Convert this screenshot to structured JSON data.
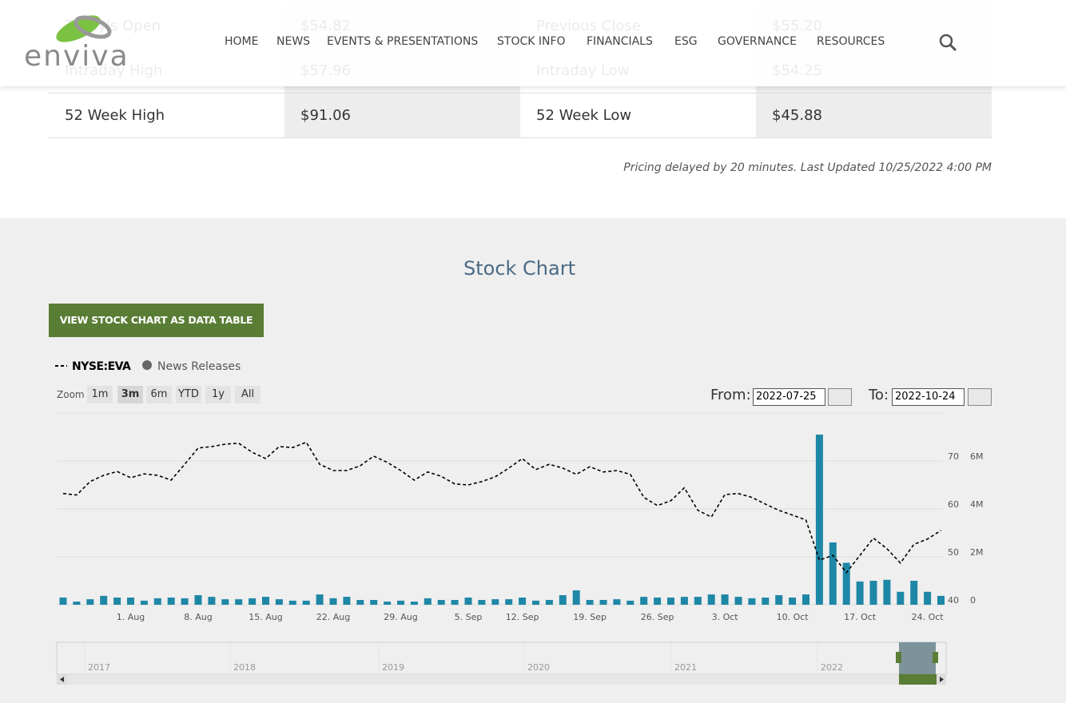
{
  "header": {
    "logo": "enviva",
    "nav": [
      "HOME",
      "NEWS",
      "EVENTS & PRESENTATIONS",
      "STOCK INFO",
      "FINANCIALS",
      "ESG",
      "GOVERNANCE",
      "RESOURCES"
    ]
  },
  "quote_table": {
    "rows": [
      [
        "Today's Open",
        "$54.82",
        "Previous Close",
        "$55.20"
      ],
      [
        "Intraday High",
        "$57.96",
        "Intraday Low",
        "$54.25"
      ],
      [
        "52 Week High",
        "$91.06",
        "52 Week Low",
        "$45.88"
      ]
    ]
  },
  "note": "Pricing delayed by 20 minutes. Last Updated 10/25/2022 4:00 PM",
  "section_title": "Stock Chart",
  "button": "VIEW STOCK CHART AS DATA TABLE",
  "controls": {
    "news_releases": "News Releases",
    "zoom_label": "Zoom",
    "zoom_buttons": [
      "1m",
      "3m",
      "6m",
      "YTD",
      "1y",
      "All"
    ],
    "from_label": "From:",
    "from_value": "2022-07-25",
    "to_label": "To:",
    "to_value": "2022-10-24"
  },
  "navigator": {
    "labels": [
      "2017",
      "2018",
      "2019",
      "2020",
      "2021",
      "2022"
    ]
  },
  "chart_data": {
    "type": "line",
    "categories": [
      null,
      null,
      null,
      null,
      null,
      "1. Aug",
      null,
      null,
      null,
      null,
      "8. Aug",
      null,
      null,
      null,
      null,
      "15. Aug",
      null,
      null,
      null,
      null,
      "22. Aug",
      null,
      null,
      null,
      null,
      "29. Aug",
      null,
      null,
      null,
      null,
      "5. Sep",
      null,
      null,
      null,
      "12. Sep",
      null,
      null,
      null,
      null,
      "19. Sep",
      null,
      null,
      null,
      null,
      "26. Sep",
      null,
      null,
      null,
      null,
      "3. Oct",
      null,
      null,
      null,
      null,
      "10. Oct",
      null,
      null,
      null,
      null,
      "17. Oct",
      null,
      null,
      null,
      null,
      "24. Oct",
      null
    ],
    "series": [
      {
        "name": "NYSE:EVA",
        "color": "#000000",
        "values": [
          63.2,
          62.9,
          65.7,
          67.0,
          67.8,
          66.5,
          67.3,
          67.0,
          66.0,
          69.3,
          72.7,
          73.0,
          73.5,
          73.7,
          71.8,
          70.5,
          73.0,
          72.8,
          73.9,
          69.3,
          68.0,
          68.0,
          69.0,
          71.0,
          69.7,
          68.0,
          66.0,
          67.7,
          66.8,
          65.2,
          65.0,
          65.7,
          66.7,
          68.5,
          70.5,
          68.2,
          69.3,
          68.5,
          67.2,
          68.8,
          67.7,
          68.0,
          67.2,
          62.4,
          60.7,
          61.7,
          64.4,
          59.7,
          58.3,
          63.0,
          63.2,
          62.4,
          61.0,
          59.7,
          58.7,
          57.7,
          49.3,
          50.3,
          46.7,
          50.3,
          53.9,
          51.7,
          48.7,
          52.6,
          53.7,
          55.5
        ]
      },
      {
        "color": "#1f87a6",
        "axis": "y2",
        "values": [
          300000,
          130000,
          230000,
          370000,
          300000,
          300000,
          170000,
          270000,
          300000,
          270000,
          400000,
          330000,
          230000,
          230000,
          270000,
          330000,
          230000,
          170000,
          170000,
          430000,
          270000,
          330000,
          200000,
          200000,
          130000,
          170000,
          130000,
          270000,
          200000,
          200000,
          300000,
          200000,
          230000,
          230000,
          300000,
          170000,
          200000,
          400000,
          600000,
          200000,
          200000,
          230000,
          170000,
          330000,
          300000,
          300000,
          330000,
          330000,
          430000,
          430000,
          330000,
          270000,
          300000,
          400000,
          300000,
          430000,
          7100000,
          2600000,
          1750000,
          970000,
          1000000,
          1040000,
          540000,
          1000000,
          540000,
          370000
        ]
      }
    ],
    "ylim": [
      40,
      80
    ],
    "yticks": [
      40,
      50,
      60,
      70
    ],
    "y2lim": [
      0,
      8000000
    ],
    "y2ticks": [
      0,
      {
        "value": 2000000,
        "label": "2M"
      },
      {
        "value": 4000000,
        "label": "4M"
      },
      {
        "value": 6000000,
        "label": "6M"
      }
    ],
    "grid": true
  }
}
